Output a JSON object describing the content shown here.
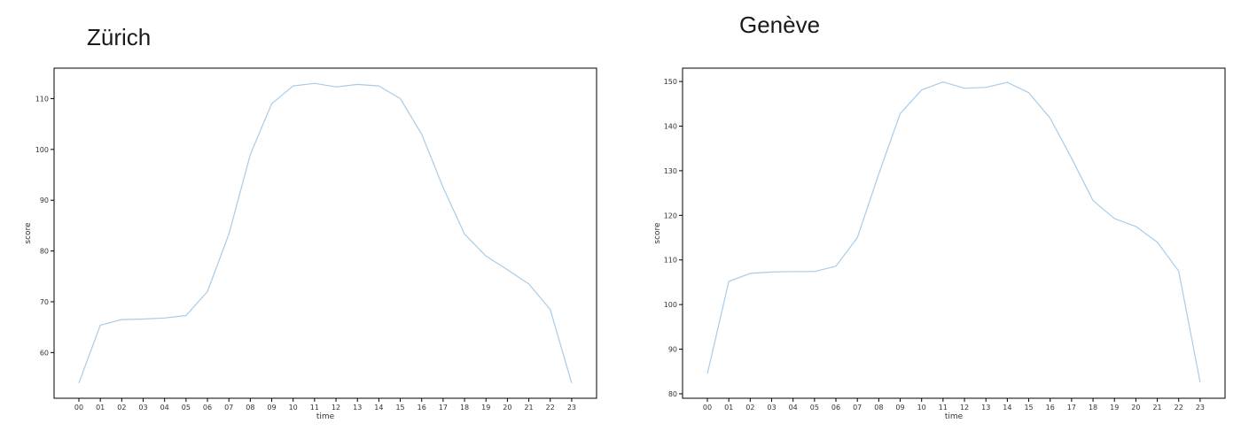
{
  "chart_data": [
    {
      "type": "line",
      "title": "Zürich",
      "xlabel": "time",
      "ylabel": "score",
      "categories": [
        "00",
        "01",
        "02",
        "03",
        "04",
        "05",
        "06",
        "07",
        "08",
        "09",
        "10",
        "11",
        "12",
        "13",
        "14",
        "15",
        "16",
        "17",
        "18",
        "19",
        "20",
        "21",
        "22",
        "23"
      ],
      "yticks": [
        60,
        70,
        80,
        90,
        100,
        110
      ],
      "ylim": [
        51,
        116
      ],
      "series": [
        {
          "values": [
            54.0,
            65.4,
            66.5,
            66.6,
            66.8,
            67.3,
            72.0,
            83.3,
            99.0,
            109.0,
            112.5,
            113.0,
            112.3,
            112.8,
            112.5,
            110.0,
            103.0,
            92.5,
            83.3,
            79.0,
            76.3,
            73.5,
            68.5,
            54.0
          ],
          "color": "#a8cce8"
        }
      ],
      "grid": false
    },
    {
      "type": "line",
      "title": "Genève",
      "xlabel": "time",
      "ylabel": "score",
      "categories": [
        "00",
        "01",
        "02",
        "03",
        "04",
        "05",
        "06",
        "07",
        "08",
        "09",
        "10",
        "11",
        "12",
        "13",
        "14",
        "15",
        "16",
        "17",
        "18",
        "19",
        "20",
        "21",
        "22",
        "23"
      ],
      "yticks": [
        80,
        90,
        100,
        110,
        120,
        130,
        140,
        150
      ],
      "ylim": [
        79,
        153
      ],
      "series": [
        {
          "values": [
            84.5,
            105.2,
            107.0,
            107.3,
            107.4,
            107.4,
            108.6,
            115.0,
            129.3,
            142.8,
            148.1,
            149.9,
            148.5,
            148.7,
            149.8,
            147.5,
            141.8,
            132.8,
            123.3,
            119.3,
            117.5,
            114.0,
            107.5,
            82.6
          ],
          "color": "#a8cce8"
        }
      ],
      "grid": false
    }
  ],
  "colors": {
    "line": "#a8cce8",
    "axes": "#000000",
    "text": "#333333"
  }
}
